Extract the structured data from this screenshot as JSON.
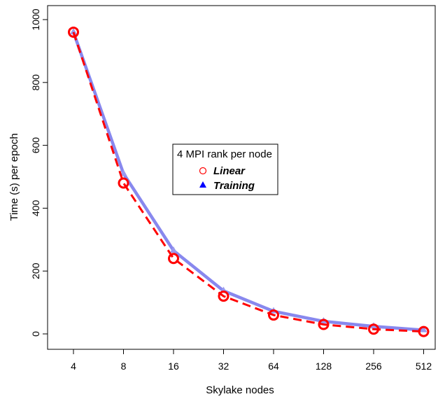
{
  "chart_data": {
    "type": "line",
    "title": "",
    "xlabel": "Skylake nodes",
    "ylabel": "Time (s) per epoch",
    "categories": [
      "4",
      "8",
      "16",
      "32",
      "64",
      "128",
      "256",
      "512"
    ],
    "ylim": [
      0,
      1000
    ],
    "yticks": [
      "0",
      "200",
      "400",
      "600",
      "800",
      "1000"
    ],
    "grid": false,
    "legend": {
      "title": "4 MPI rank per node",
      "placement": "center",
      "entries": [
        {
          "label": "Linear",
          "marker": "open-circle",
          "color": "#ff0000"
        },
        {
          "label": "Training",
          "marker": "filled-triangle",
          "color": "#0000ff"
        }
      ]
    },
    "series": [
      {
        "name": "Linear",
        "values": [
          960,
          480,
          240,
          120,
          60,
          30,
          15,
          7.5
        ],
        "color": "#ff0000",
        "line": "dashed",
        "marker": "open-circle"
      },
      {
        "name": "Training",
        "values": [
          960,
          510,
          265,
          137,
          72,
          40,
          24,
          12
        ],
        "color": "#8888ee",
        "line": "solid",
        "marker": "filled-triangle"
      }
    ]
  }
}
